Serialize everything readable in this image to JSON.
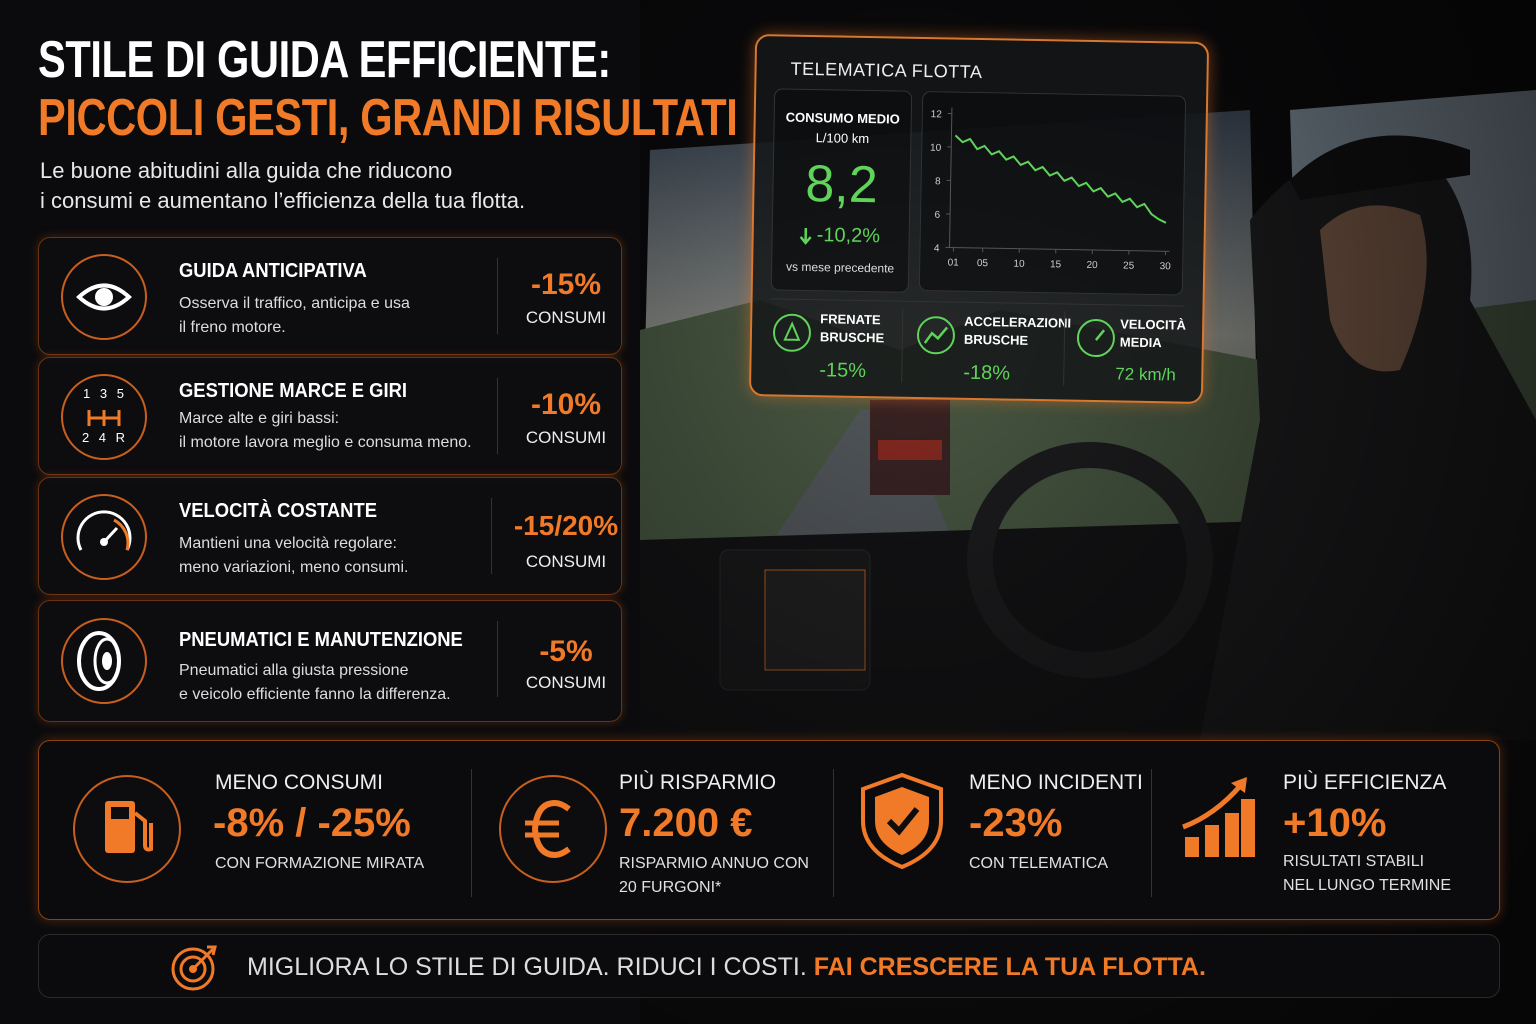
{
  "header": {
    "title_line1": "STILE DI GUIDA EFFICIENTE:",
    "title_line2": "PICCOLI GESTI, GRANDI RISULTATI",
    "subtitle_line1": "Le buone abitudini alla guida che riducono",
    "subtitle_line2": "i consumi e aumentano l’efficienza della tua flotta."
  },
  "cards": [
    {
      "title": "GUIDA ANTICIPATIVA",
      "desc_line1": "Osserva il traffico, anticipa e usa",
      "desc_line2": "il freno motore.",
      "value": "-15%",
      "unit": "CONSUMI"
    },
    {
      "title": "GESTIONE MARCE E GIRI",
      "icon_text": [
        "1 3 5",
        "2 4 R"
      ],
      "desc_line1": "Marce alte e giri bassi:",
      "desc_line2": "il motore lavora meglio e consuma meno.",
      "value": "-10%",
      "unit": "CONSUMI"
    },
    {
      "title": "VELOCITÀ COSTANTE",
      "desc_line1": "Mantieni una velocità regolare:",
      "desc_line2": "meno variazioni, meno consumi.",
      "value": "-15/20%",
      "unit": "CONSUMI"
    },
    {
      "title": "PNEUMATICI E MANUTENZIONE",
      "desc_line1": "Pneumatici alla giusta pressione",
      "desc_line2": "e veicolo efficiente fanno la differenza.",
      "value": "-5%",
      "unit": "CONSUMI"
    }
  ],
  "telematics": {
    "title": "TELEMATICA FLOTTA",
    "kpi_label": "CONSUMO MEDIO",
    "kpi_unit": "L/100 km",
    "kpi_value": "8,2",
    "kpi_change": "-10,2%",
    "kpi_note": "vs mese precedente",
    "chart": {
      "type": "line",
      "color": "#5fd35a",
      "x": [
        1,
        2,
        3,
        4,
        5,
        6,
        7,
        8,
        9,
        10,
        11,
        12,
        13,
        14,
        15,
        16,
        17,
        18,
        19,
        20,
        21,
        22,
        23,
        24,
        25,
        26,
        27,
        28,
        29,
        30
      ],
      "values": [
        10.7,
        10.3,
        10.5,
        9.9,
        10.1,
        9.6,
        9.8,
        9.3,
        9.5,
        9.0,
        9.2,
        8.7,
        8.9,
        8.4,
        8.6,
        8.1,
        8.3,
        7.8,
        8.0,
        7.5,
        7.7,
        7.2,
        7.4,
        6.9,
        7.1,
        6.6,
        6.8,
        6.2,
        5.9,
        5.7
      ],
      "xlim": [
        1,
        30
      ],
      "xticks": [
        {
          "value": 1,
          "label": "01"
        },
        {
          "value": 5,
          "label": "05"
        },
        10,
        15,
        20,
        25,
        30
      ],
      "ylim": [
        4,
        12
      ],
      "yticks": [
        4,
        6,
        8,
        10,
        12
      ]
    },
    "metrics": [
      {
        "label_line1": "FRENATE",
        "label_line2": "BRUSCHE",
        "value": "-15%"
      },
      {
        "label_line1": "ACCELERAZIONI",
        "label_line2": "BRUSCHE",
        "value": "-18%"
      },
      {
        "label_line1": "VELOCITÀ",
        "label_line2": "MEDIA",
        "value": "72 km/h"
      }
    ]
  },
  "benefits": [
    {
      "title": "MENO CONSUMI",
      "value": "-8% / -25%",
      "note_line1": "CON FORMAZIONE MIRATA"
    },
    {
      "title": "PIÙ RISPARMIO",
      "value": "7.200 €",
      "note_line1": "RISPARMIO ANNUO CON",
      "note_line2": "20 FURGONI*"
    },
    {
      "title": "MENO INCIDENTI",
      "value": "-23%",
      "note_line1": "CON TELEMATICA"
    },
    {
      "title": "PIÙ EFFICIENZA",
      "value": "+10%",
      "note_line1": "RISULTATI STABILI",
      "note_line2": "NEL LUNGO TERMINE"
    }
  ],
  "footer": {
    "text": "MIGLIORA LO STILE DI GUIDA. RIDUCI I COSTI.",
    "highlight": "FAI CRESCERE LA TUA FLOTTA."
  }
}
